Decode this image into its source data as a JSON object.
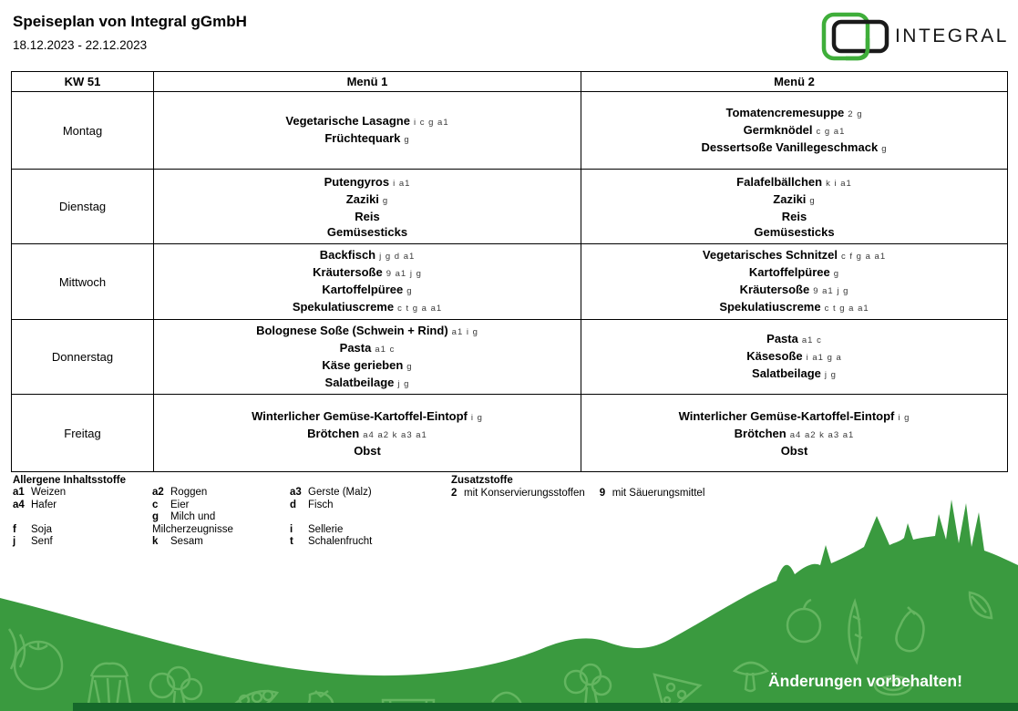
{
  "header": {
    "title": "Speiseplan von Integral gGmbH",
    "date_range": "18.12.2023 - 22.12.2023",
    "logo_text": "INTEGRAL"
  },
  "table": {
    "columns": [
      "KW 51",
      "Menü 1",
      "Menü 2"
    ],
    "rows": [
      {
        "day": "Montag",
        "menu1": [
          {
            "name": "Vegetarische Lasagne",
            "codes": "i c g a1"
          },
          {
            "name": "Früchtequark",
            "codes": "g"
          }
        ],
        "menu2": [
          {
            "name": "Tomatencremesuppe",
            "codes": "2 g"
          },
          {
            "name": "Germknödel",
            "codes": "c g a1"
          },
          {
            "name": "Dessertsoße Vanillegeschmack",
            "codes": "g"
          }
        ]
      },
      {
        "day": "Dienstag",
        "menu1": [
          {
            "name": "Putengyros",
            "codes": "i a1"
          },
          {
            "name": "Zaziki",
            "codes": "g"
          },
          {
            "name": "Reis",
            "codes": ""
          },
          {
            "name": "Gemüsesticks",
            "codes": ""
          }
        ],
        "menu2": [
          {
            "name": "Falafelbällchen",
            "codes": "k i a1"
          },
          {
            "name": "Zaziki",
            "codes": "g"
          },
          {
            "name": "Reis",
            "codes": ""
          },
          {
            "name": "Gemüsesticks",
            "codes": ""
          }
        ]
      },
      {
        "day": "Mittwoch",
        "menu1": [
          {
            "name": "Backfisch",
            "codes": "j g d a1"
          },
          {
            "name": "Kräutersoße",
            "codes": "9 a1 j g"
          },
          {
            "name": "Kartoffelpüree",
            "codes": "g"
          },
          {
            "name": "Spekulatiuscreme",
            "codes": "c t g a a1"
          }
        ],
        "menu2": [
          {
            "name": "Vegetarisches Schnitzel",
            "codes": "c f g a a1"
          },
          {
            "name": "Kartoffelpüree",
            "codes": "g"
          },
          {
            "name": "Kräutersoße",
            "codes": "9 a1 j g"
          },
          {
            "name": "Spekulatiuscreme",
            "codes": "c t g a a1"
          }
        ]
      },
      {
        "day": "Donnerstag",
        "menu1": [
          {
            "name": "Bolognese Soße (Schwein + Rind)",
            "codes": "a1 i g"
          },
          {
            "name": "Pasta",
            "codes": "a1 c"
          },
          {
            "name": "Käse gerieben",
            "codes": "g"
          },
          {
            "name": "Salatbeilage",
            "codes": "j g"
          }
        ],
        "menu2": [
          {
            "name": "Pasta",
            "codes": "a1 c"
          },
          {
            "name": "Käsesoße",
            "codes": "i a1 g a"
          },
          {
            "name": "Salatbeilage",
            "codes": "j g"
          }
        ]
      },
      {
        "day": "Freitag",
        "menu1": [
          {
            "name": "Winterlicher Gemüse-Kartoffel-Eintopf",
            "codes": "i g"
          },
          {
            "name": "Brötchen",
            "codes": "a4 a2 k a3 a1"
          },
          {
            "name": "Obst",
            "codes": ""
          }
        ],
        "menu2": [
          {
            "name": "Winterlicher Gemüse-Kartoffel-Eintopf",
            "codes": "i g"
          },
          {
            "name": "Brötchen",
            "codes": "a4 a2 k a3 a1"
          },
          {
            "name": "Obst",
            "codes": ""
          }
        ]
      }
    ]
  },
  "allergens": {
    "title": "Allergene Inhaltsstoffe",
    "columns": [
      [
        {
          "code": "a1",
          "label": "Weizen"
        },
        {
          "code": "a4",
          "label": "Hafer"
        },
        {
          "spacer": true
        },
        {
          "code": "f",
          "label": "Soja"
        },
        {
          "code": "j",
          "label": "Senf"
        }
      ],
      [
        {
          "code": "a2",
          "label": "Roggen"
        },
        {
          "code": "c",
          "label": "Eier"
        },
        {
          "code": "g",
          "label": "Milch und Milcherzeugnisse"
        },
        {
          "code": "k",
          "label": "Sesam"
        }
      ],
      [
        {
          "code": "a3",
          "label": "Gerste (Malz)"
        },
        {
          "code": "d",
          "label": "Fisch"
        },
        {
          "spacer": true
        },
        {
          "code": "i",
          "label": "Sellerie"
        },
        {
          "code": "t",
          "label": "Schalenfrucht"
        }
      ]
    ]
  },
  "additives": {
    "title": "Zusatzstoffe",
    "items": [
      {
        "code": "2",
        "label": "mit Konservierungsstoffen"
      },
      {
        "code": "9",
        "label": "mit Säuerungsmittel"
      }
    ]
  },
  "footer": {
    "note": "Änderungen vorbehalten!"
  },
  "colors": {
    "brand_green": "#3a9a3f",
    "doodle_green": "#6fbc69",
    "dark_green": "#15682a",
    "logo_green": "#3fae3a",
    "logo_black": "#1a1a1a"
  }
}
